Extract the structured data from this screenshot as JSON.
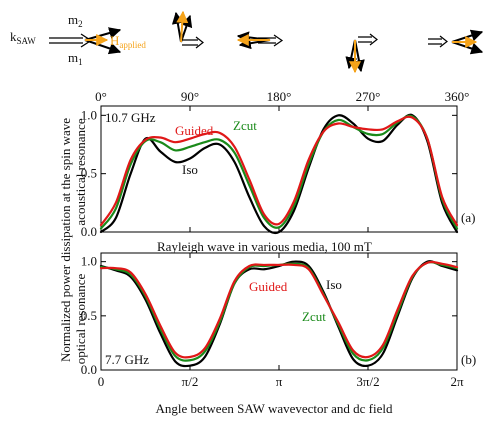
{
  "diagram": {
    "k_label": "k",
    "k_sub": "SAW",
    "m2_label": "m",
    "m2_sub": "2",
    "m1_label": "m",
    "m1_sub": "1",
    "h_label": "H",
    "h_sub": "applied",
    "colors": {
      "field": "#f5a31a",
      "arrow": "#000000"
    }
  },
  "y_axis_title": [
    "Normalized power dissipation at the spin wave",
    "acoustical resonance",
    "optical resonance"
  ],
  "x_axis_title": "Angle between SAW wavevector and dc field",
  "chart_data": [
    {
      "type": "line",
      "panel_tag": "(a)",
      "freq_label": "10.7 GHz",
      "caption": "Rayleigh wave in various media, 100 mT",
      "xlim": [
        0,
        360
      ],
      "ylim": [
        0,
        1.08
      ],
      "top_ticks": [
        "0°",
        "90°",
        "180°",
        "270°",
        "360°"
      ],
      "top_tick_values": [
        0,
        90,
        180,
        270,
        360
      ],
      "y_ticks": [
        "0.0",
        "0.5",
        "1.0"
      ],
      "y_tick_values": [
        0,
        0.5,
        1.0
      ],
      "x": [
        0,
        15,
        30,
        45,
        60,
        75,
        90,
        105,
        120,
        135,
        150,
        165,
        180,
        195,
        210,
        225,
        240,
        255,
        270,
        285,
        300,
        315,
        330,
        345,
        360
      ],
      "series": [
        {
          "name": "Iso",
          "color": "#000000",
          "values": [
            0.0,
            0.12,
            0.5,
            0.8,
            0.69,
            0.6,
            0.63,
            0.72,
            0.75,
            0.6,
            0.3,
            0.05,
            0.0,
            0.18,
            0.55,
            0.88,
            1.0,
            0.93,
            0.8,
            0.78,
            0.92,
            1.0,
            0.78,
            0.25,
            0.0
          ]
        },
        {
          "name": "Zcut",
          "color": "#1a8a1a",
          "values": [
            0.03,
            0.2,
            0.58,
            0.78,
            0.77,
            0.7,
            0.73,
            0.77,
            0.79,
            0.68,
            0.4,
            0.12,
            0.04,
            0.22,
            0.58,
            0.86,
            0.96,
            0.9,
            0.84,
            0.84,
            0.94,
            0.99,
            0.8,
            0.28,
            0.03
          ]
        },
        {
          "name": "Guided",
          "color": "#e01818",
          "values": [
            0.06,
            0.25,
            0.62,
            0.79,
            0.81,
            0.77,
            0.8,
            0.84,
            0.85,
            0.73,
            0.45,
            0.15,
            0.07,
            0.26,
            0.62,
            0.86,
            0.93,
            0.9,
            0.88,
            0.88,
            0.95,
            0.98,
            0.8,
            0.3,
            0.06
          ]
        }
      ],
      "annotations": [
        "Guided",
        "Zcut",
        "Iso"
      ]
    },
    {
      "type": "line",
      "panel_tag": "(b)",
      "freq_label": "7.7 GHz",
      "xlim": [
        0,
        360
      ],
      "ylim": [
        0,
        1.08
      ],
      "bottom_ticks": [
        "0",
        "π/2",
        "π",
        "3π/2",
        "2π"
      ],
      "bottom_tick_values": [
        0,
        90,
        180,
        270,
        360
      ],
      "y_ticks": [
        "0.0",
        "0.5",
        "1.0"
      ],
      "y_tick_values": [
        0,
        0.5,
        1.0
      ],
      "x": [
        0,
        15,
        30,
        45,
        60,
        75,
        90,
        105,
        120,
        135,
        150,
        165,
        180,
        195,
        210,
        225,
        240,
        255,
        270,
        285,
        300,
        315,
        330,
        345,
        360
      ],
      "series": [
        {
          "name": "Iso",
          "color": "#000000",
          "values": [
            0.96,
            0.92,
            0.86,
            0.65,
            0.34,
            0.08,
            0.04,
            0.12,
            0.42,
            0.8,
            0.93,
            0.93,
            0.96,
            1.0,
            0.96,
            0.72,
            0.4,
            0.1,
            0.04,
            0.15,
            0.5,
            0.85,
            1.0,
            0.96,
            0.92
          ]
        },
        {
          "name": "Zcut",
          "color": "#1a8a1a",
          "values": [
            0.95,
            0.93,
            0.88,
            0.68,
            0.38,
            0.13,
            0.09,
            0.17,
            0.44,
            0.8,
            0.95,
            0.96,
            0.97,
            0.98,
            0.94,
            0.7,
            0.42,
            0.15,
            0.09,
            0.2,
            0.53,
            0.86,
            0.99,
            0.97,
            0.94
          ]
        },
        {
          "name": "Guided",
          "color": "#e01818",
          "values": [
            0.94,
            0.94,
            0.9,
            0.7,
            0.41,
            0.16,
            0.12,
            0.2,
            0.47,
            0.82,
            0.96,
            0.97,
            0.97,
            0.97,
            0.93,
            0.69,
            0.44,
            0.18,
            0.12,
            0.23,
            0.56,
            0.87,
            0.99,
            0.98,
            0.95
          ]
        }
      ],
      "annotations": [
        "Iso",
        "Guided",
        "Zcut"
      ]
    }
  ]
}
